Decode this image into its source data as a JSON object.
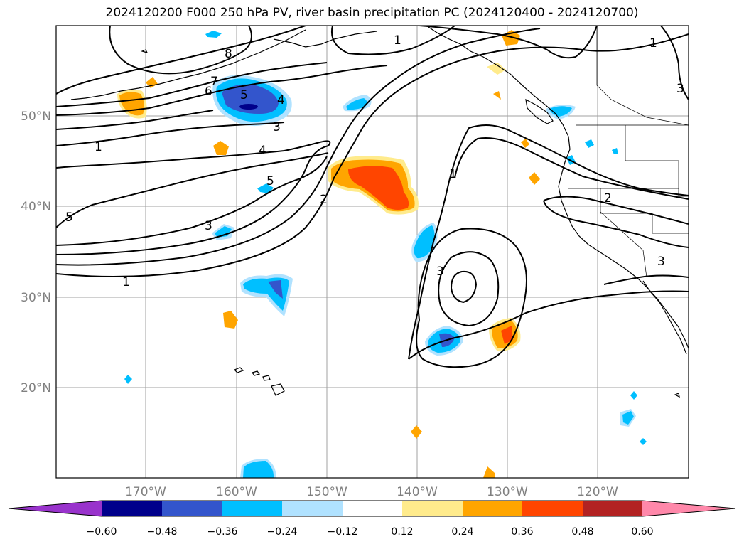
{
  "title": "2024120200 F000 250 hPa PV, river basin precipitation PC (2024120400 - 2024120700)",
  "latitude_labels": [
    "50°N",
    "40°N",
    "30°N",
    "20°N"
  ],
  "longitude_labels": [
    "170°W",
    "160°W",
    "150°W",
    "140°W",
    "130°W",
    "120°W"
  ],
  "contour_labels": [
    "8",
    "1",
    "7",
    "6",
    "5",
    "4",
    "3",
    "4",
    "5",
    "2",
    "1",
    "3",
    "3",
    "1",
    "5",
    "3",
    "1",
    "2",
    "3",
    "1"
  ],
  "colorbar": {
    "ticks": [
      "−0.60",
      "−0.48",
      "−0.36",
      "−0.24",
      "−0.12",
      "0.12",
      "0.24",
      "0.36",
      "0.48",
      "0.60"
    ],
    "colors": [
      "#9933cc",
      "#00008b",
      "#3355cc",
      "#00bfff",
      "#b0e2ff",
      "#ffffff",
      "#ffeb8c",
      "#ffa500",
      "#ff4500",
      "#b22222",
      "#ff88aa"
    ]
  },
  "colors": {
    "grid": "#a0a0a0",
    "axis_labels": "#808080",
    "contours": "#000000"
  }
}
